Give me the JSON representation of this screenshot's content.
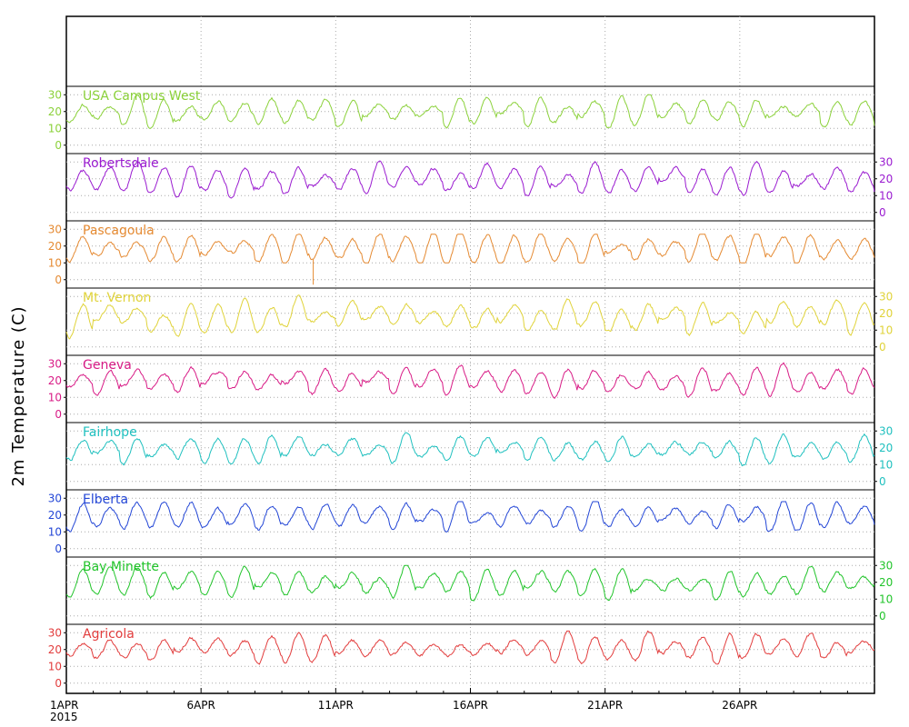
{
  "chart_data": {
    "type": "line",
    "ylabel": "2m Temperature (C)",
    "x_tick_labels": [
      "1APR",
      "6APR",
      "11APR",
      "16APR",
      "21APR",
      "26APR"
    ],
    "x_year_label": "2015",
    "x_range": [
      "2015-04-01",
      "2015-05-01"
    ],
    "y_range": [
      -5,
      35
    ],
    "y_ticks": [
      0,
      10,
      20,
      30
    ],
    "grid": true,
    "panels": [
      {
        "name": "USA Campus West",
        "color": "#8bd13a",
        "axis_side": "left",
        "series_seed": 11,
        "min_approx": 9,
        "max_approx": 30
      },
      {
        "name": "Robertsdale",
        "color": "#9a1bd0",
        "axis_side": "right",
        "series_seed": 23,
        "min_approx": 8,
        "max_approx": 31
      },
      {
        "name": "Pascagoula",
        "color": "#e58a32",
        "axis_side": "left",
        "series_seed": 37,
        "min_approx": 10,
        "max_approx": 27,
        "spike": {
          "date": "2015-04-10T04:00",
          "low": -3
        }
      },
      {
        "name": "Mt. Vernon",
        "color": "#e0d33a",
        "axis_side": "right",
        "series_seed": 41,
        "min_approx": 2,
        "max_approx": 31
      },
      {
        "name": "Geneva",
        "color": "#d81b86",
        "axis_side": "left",
        "series_seed": 53,
        "min_approx": 9,
        "max_approx": 31
      },
      {
        "name": "Fairhope",
        "color": "#1fc0bf",
        "axis_side": "right",
        "series_seed": 67,
        "min_approx": 9,
        "max_approx": 29
      },
      {
        "name": "Elberta",
        "color": "#2346d6",
        "axis_side": "left",
        "series_seed": 71,
        "min_approx": 10,
        "max_approx": 28
      },
      {
        "name": "Bay Minette",
        "color": "#21c42a",
        "axis_side": "right",
        "series_seed": 83,
        "min_approx": 9,
        "max_approx": 30
      },
      {
        "name": "Agricola",
        "color": "#e23c3c",
        "axis_side": "left",
        "series_seed": 97,
        "min_approx": 10,
        "max_approx": 31
      }
    ]
  }
}
